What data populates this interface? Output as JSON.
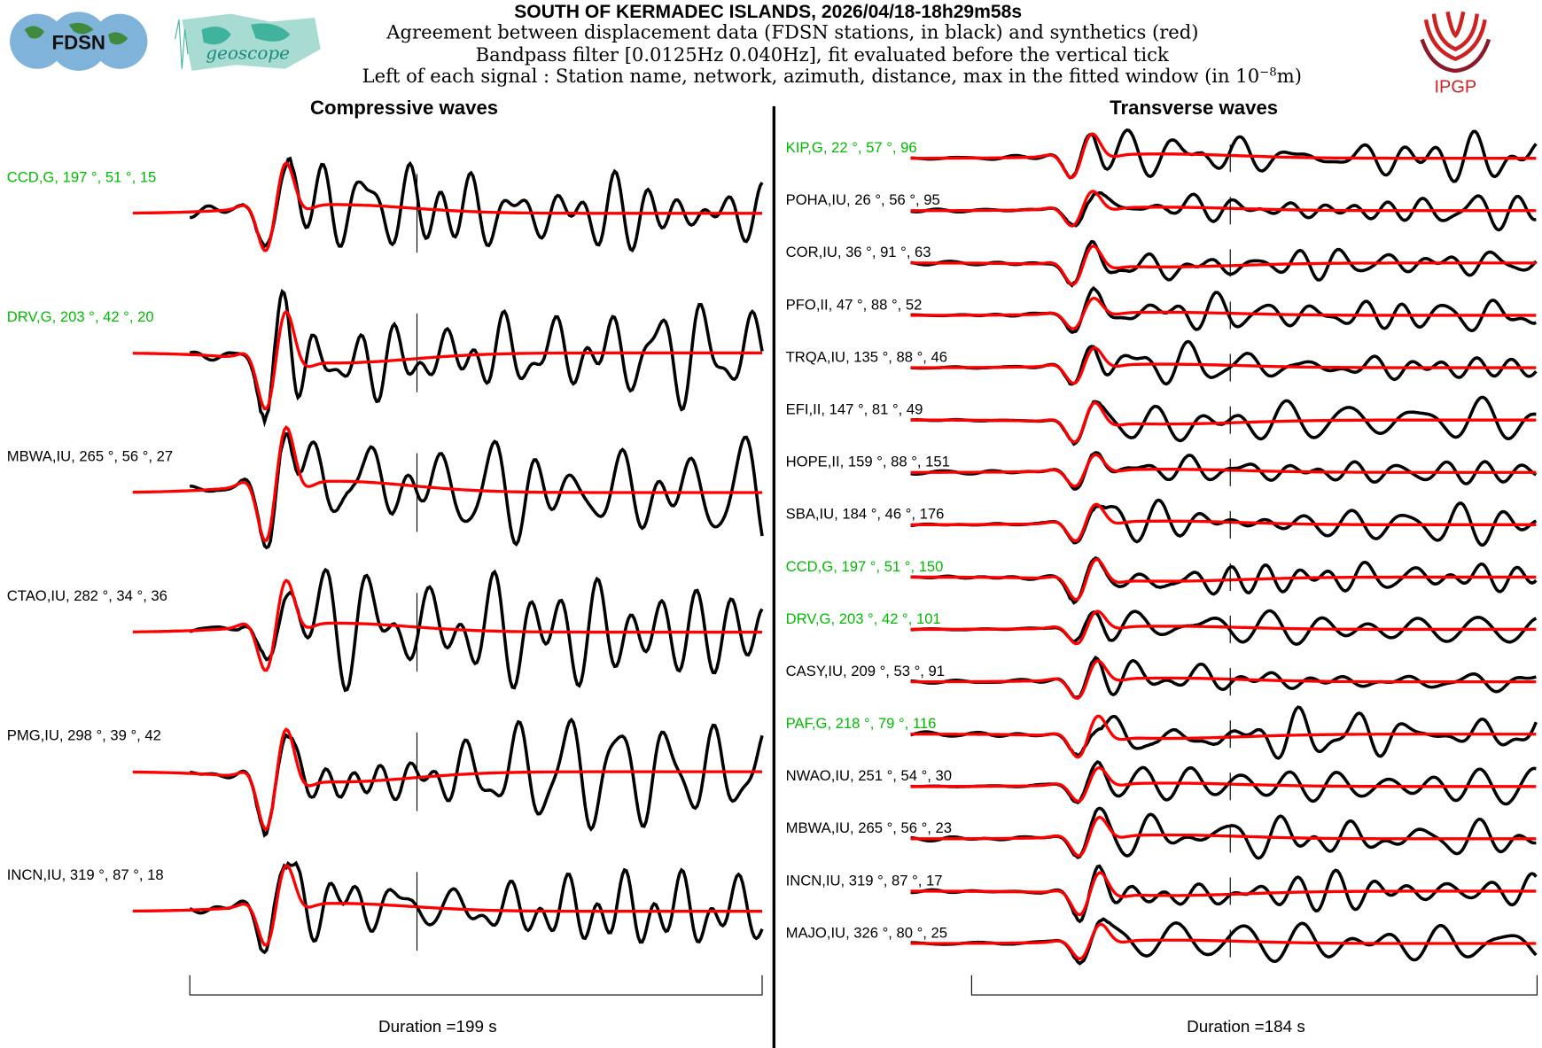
{
  "header": {
    "title": "SOUTH OF KERMADEC ISLANDS, 2026/04/18-18h29m58s",
    "line1": "Agreement between displacement data (FDSN stations, in black) and synthetics (red)",
    "line2": "Bandpass filter [0.0125Hz 0.040Hz], fit evaluated before the vertical tick",
    "line3_pre": "Left of each signal : Station name, network, azimuth, distance, max in the fitted window (in 10",
    "line3_sup": "−8",
    "line3_post": "m)"
  },
  "logos": {
    "fdsn": "FDSN",
    "geoscope": "geoscope",
    "ipgp": "IPGP"
  },
  "colors": {
    "data": "#000000",
    "synthetic": "#ff0000",
    "geoscope_station": "#00bb00",
    "ipgp": "#cc2222"
  },
  "chart_data": [
    {
      "type": "line",
      "title": "Compressive waves",
      "duration_label": "Duration =199 s",
      "duration_s": 199,
      "series_legend": [
        "data (black)",
        "synthetics (red)"
      ],
      "traces": [
        {
          "label": "CCD,G, 197 °, 51 °, 15",
          "geoscope": true
        },
        {
          "label": "DRV,G, 203 °, 42 °, 20",
          "geoscope": true
        },
        {
          "label": "MBWA,IU, 265 °, 56 °, 27",
          "geoscope": false
        },
        {
          "label": "CTAO,IU, 282 °, 34 °, 36",
          "geoscope": false
        },
        {
          "label": "PMG,IU, 298 °, 39 °, 42",
          "geoscope": false
        },
        {
          "label": "INCN,IU, 319 °, 87 °, 18",
          "geoscope": false
        }
      ]
    },
    {
      "type": "line",
      "title": "Transverse waves",
      "duration_label": "Duration =184 s",
      "duration_s": 184,
      "series_legend": [
        "data (black)",
        "synthetics (red)"
      ],
      "traces": [
        {
          "label": "KIP,G, 22 °, 57 °, 96",
          "geoscope": true
        },
        {
          "label": "POHA,IU, 26 °, 56 °, 95",
          "geoscope": false
        },
        {
          "label": "COR,IU, 36 °, 91 °, 63",
          "geoscope": false
        },
        {
          "label": "PFO,II, 47 °, 88 °, 52",
          "geoscope": false
        },
        {
          "label": "TRQA,IU, 135 °, 88 °, 46",
          "geoscope": false
        },
        {
          "label": "EFI,II, 147 °, 81 °, 49",
          "geoscope": false
        },
        {
          "label": "HOPE,II, 159 °, 88 °, 151",
          "geoscope": false
        },
        {
          "label": "SBA,IU, 184 °, 46 °, 176",
          "geoscope": false
        },
        {
          "label": "CCD,G, 197 °, 51 °, 150",
          "geoscope": true
        },
        {
          "label": "DRV,G, 203 °, 42 °, 101",
          "geoscope": true
        },
        {
          "label": "CASY,IU, 209 °, 53 °, 91",
          "geoscope": false
        },
        {
          "label": "PAF,G, 218 °, 79 °, 116",
          "geoscope": true
        },
        {
          "label": "NWAO,IU, 251 °, 54 °, 30",
          "geoscope": false
        },
        {
          "label": "MBWA,IU, 265 °, 56 °, 23",
          "geoscope": false
        },
        {
          "label": "INCN,IU, 319 °, 87 °, 17",
          "geoscope": false
        },
        {
          "label": "MAJO,IU, 326 °, 80 °, 25",
          "geoscope": false
        }
      ]
    }
  ]
}
